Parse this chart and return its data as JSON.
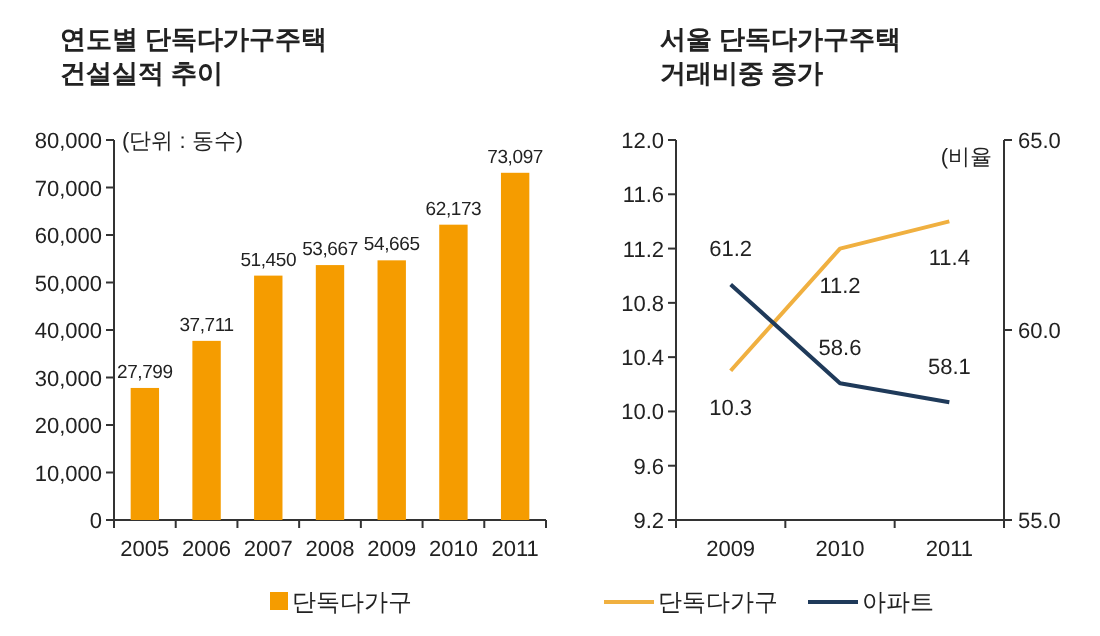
{
  "chart_data": [
    {
      "type": "bar",
      "title": "연도별 단독다가구주택\n건설실적 추이",
      "annotations": [
        "(단위 : 동수)"
      ],
      "categories": [
        "2005",
        "2006",
        "2007",
        "2008",
        "2009",
        "2010",
        "2011"
      ],
      "series": [
        {
          "name": "단독다가구",
          "color": "#f59c00",
          "values": [
            27799,
            37711,
            51450,
            53667,
            54665,
            62173,
            73097
          ],
          "value_labels": [
            "27,799",
            "37,711",
            "51,450",
            "53,667",
            "54,665",
            "62,173",
            "73,097"
          ]
        }
      ],
      "ylim": [
        0,
        80000
      ],
      "yticks": [
        0,
        {
          "value": 10000,
          "label": "10,000"
        },
        {
          "value": 20000,
          "label": "20,000"
        },
        {
          "value": 30000,
          "label": "30,000"
        },
        {
          "value": 40000,
          "label": "40,000"
        },
        {
          "value": 50000,
          "label": "50,000"
        },
        {
          "value": 60000,
          "label": "60,000"
        },
        {
          "value": 70000,
          "label": "70,000"
        },
        {
          "value": 80000,
          "label": "80,000"
        }
      ],
      "legend": "bottom"
    },
    {
      "type": "line",
      "title": "서울 단독다가구주택\n거래비중 증가",
      "annotations": [
        "(비율"
      ],
      "categories": [
        "2009",
        "2010",
        "2011"
      ],
      "series": [
        {
          "name": "단독다가구",
          "color": "#f0b040",
          "values": [
            10.3,
            11.2,
            11.4
          ],
          "value_labels": [
            "10.3",
            "11.2",
            "11.4"
          ]
        },
        {
          "name": "아파트",
          "color": "#1f3a5a",
          "axis": "y2",
          "values": [
            61.2,
            58.6,
            58.1
          ],
          "value_labels": [
            "61.2",
            "58.6",
            "58.1"
          ]
        }
      ],
      "ylim": [
        9.2,
        12.0
      ],
      "yticks": [
        9.2,
        9.6,
        {
          "value": 10,
          "label": "10.0"
        },
        10.4,
        10.8,
        11.2,
        11.6,
        {
          "value": 12,
          "label": "12.0"
        }
      ],
      "y2lim": [
        55.0,
        65.0
      ],
      "y2ticks": [
        {
          "value": 55,
          "label": "55.0"
        },
        {
          "value": 60,
          "label": "60.0"
        },
        {
          "value": 65,
          "label": "65.0"
        }
      ],
      "legend": "bottom"
    }
  ]
}
